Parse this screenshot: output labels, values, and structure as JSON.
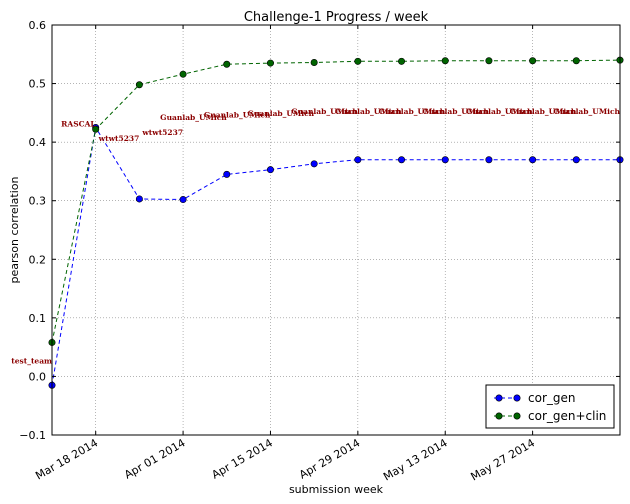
{
  "chart_data": {
    "type": "line",
    "title": "Challenge-1 Progress / week",
    "xlabel": "submission week",
    "ylabel": "pearson correlation",
    "x": [
      "2014-03-11",
      "2014-03-18",
      "2014-03-25",
      "2014-04-01",
      "2014-04-08",
      "2014-04-15",
      "2014-04-22",
      "2014-04-29",
      "2014-05-06",
      "2014-05-13",
      "2014-05-20",
      "2014-05-27",
      "2014-06-03",
      "2014-06-10"
    ],
    "xticks": [
      "Mar 18 2014",
      "Apr 01 2014",
      "Apr 15 2014",
      "Apr 29 2014",
      "May 13 2014",
      "May 27 2014"
    ],
    "xlim": [
      "2014-03-11",
      "2014-06-10"
    ],
    "ylim": [
      -0.1,
      0.6
    ],
    "yticks": [
      "−0.1",
      "0.0",
      "0.1",
      "0.2",
      "0.3",
      "0.4",
      "0.5",
      "0.6"
    ],
    "grid": true,
    "legend_position": "lower-right",
    "series": [
      {
        "name": "cor_gen",
        "color": "#0000ff",
        "values": [
          -0.015,
          0.425,
          0.303,
          0.302,
          0.345,
          0.353,
          0.363,
          0.37,
          0.37,
          0.37,
          0.37,
          0.37,
          0.37,
          0.37
        ]
      },
      {
        "name": "cor_gen+clin",
        "color": "#006400",
        "values": [
          0.058,
          0.422,
          0.498,
          0.516,
          0.533,
          0.535,
          0.536,
          0.538,
          0.538,
          0.539,
          0.539,
          0.539,
          0.539,
          0.54
        ]
      }
    ],
    "annotations": [
      {
        "text": "test_team",
        "x": "2014-03-11",
        "y": 0.022
      },
      {
        "text": "RASCAL",
        "x": "2014-03-18",
        "y": 0.427
      },
      {
        "text": "wtwt5237",
        "x": "2014-03-25",
        "y": 0.402
      },
      {
        "text": "wtwt5237",
        "x": "2014-04-01",
        "y": 0.412
      },
      {
        "text": "Guanlab_UMich",
        "x": "2014-04-08",
        "y": 0.438
      },
      {
        "text": "Guanlab_UMich",
        "x": "2014-04-15",
        "y": 0.442
      },
      {
        "text": "Guanlab_UMich",
        "x": "2014-04-22",
        "y": 0.445
      },
      {
        "text": "Guanlab_UMich",
        "x": "2014-04-29",
        "y": 0.448
      },
      {
        "text": "Guanlab_UMich",
        "x": "2014-05-06",
        "y": 0.448
      },
      {
        "text": "Guanlab_UMich",
        "x": "2014-05-13",
        "y": 0.448
      },
      {
        "text": "Guanlab_UMich",
        "x": "2014-05-20",
        "y": 0.448
      },
      {
        "text": "Guanlab_UMich",
        "x": "2014-05-27",
        "y": 0.448
      },
      {
        "text": "Guanlab_UMich",
        "x": "2014-06-03",
        "y": 0.448
      },
      {
        "text": "Guanlab_UMich",
        "x": "2014-06-10",
        "y": 0.448
      }
    ]
  }
}
